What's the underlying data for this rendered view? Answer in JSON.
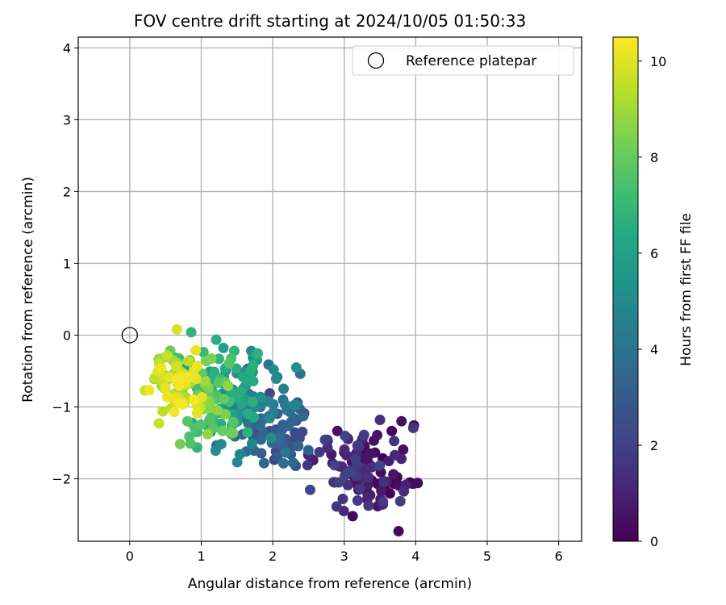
{
  "chart_data": {
    "type": "scatter",
    "title": "FOV centre drift starting at 2024/10/05 01:50:33",
    "xlabel": "Angular distance from reference (arcmin)",
    "ylabel": "Rotation from reference (arcmin)",
    "xlim": [
      -0.72,
      6.32
    ],
    "ylim": [
      -2.87,
      4.15
    ],
    "xticks": [
      0,
      1,
      2,
      3,
      4,
      5,
      6
    ],
    "yticks": [
      -2,
      -1,
      0,
      1,
      2,
      3,
      4
    ],
    "grid": true,
    "legend": {
      "placement": "top-right",
      "entries": [
        "Reference platepar"
      ]
    },
    "reference_point": {
      "name": "Reference platepar",
      "x": 0,
      "y": 0
    },
    "colorbar": {
      "label": "Hours from first FF file",
      "range": [
        0,
        10.5
      ],
      "ticks": [
        0,
        2,
        4,
        6,
        8,
        10
      ],
      "colormap": "viridis"
    },
    "hours_range": [
      0,
      10.4
    ],
    "clusters": [
      {
        "hours": [
          0.0,
          0.8
        ],
        "x_range": [
          3.0,
          3.9
        ],
        "y_range": [
          -2.4,
          -1.3
        ],
        "count": 48
      },
      {
        "hours": [
          0.8,
          2.2
        ],
        "x_range": [
          2.5,
          3.7
        ],
        "y_range": [
          -2.3,
          -1.4
        ],
        "count": 60
      },
      {
        "hours": [
          2.2,
          3.6
        ],
        "x_range": [
          1.6,
          2.4
        ],
        "y_range": [
          -1.8,
          -0.9
        ],
        "count": 55
      },
      {
        "hours": [
          3.6,
          5.2
        ],
        "x_range": [
          1.2,
          2.2
        ],
        "y_range": [
          -1.6,
          -0.4
        ],
        "count": 60
      },
      {
        "hours": [
          5.2,
          7.0
        ],
        "x_range": [
          0.9,
          1.7
        ],
        "y_range": [
          -1.4,
          -0.2
        ],
        "count": 70
      },
      {
        "hours": [
          7.0,
          8.8
        ],
        "x_range": [
          0.7,
          1.4
        ],
        "y_range": [
          -1.4,
          -0.3
        ],
        "count": 60
      },
      {
        "hours": [
          8.8,
          10.4
        ],
        "x_range": [
          0.35,
          0.95
        ],
        "y_range": [
          -1.05,
          -0.25
        ],
        "count": 65
      }
    ],
    "outliers": [
      {
        "x": 0.66,
        "y": 0.08,
        "hours": 9.9
      },
      {
        "x": 0.86,
        "y": 0.04,
        "hours": 6.8
      },
      {
        "x": 1.7,
        "y": -0.22,
        "hours": 5.0
      },
      {
        "x": 0.85,
        "y": -1.51,
        "hours": 7.5
      },
      {
        "x": 3.76,
        "y": -2.73,
        "hours": 0.3
      },
      {
        "x": 3.96,
        "y": -2.07,
        "hours": 0.3
      },
      {
        "x": 2.98,
        "y": -2.28,
        "hours": 1.6
      },
      {
        "x": 3.5,
        "y": -1.18,
        "hours": 1.4
      },
      {
        "x": 2.3,
        "y": -1.16,
        "hours": 3.3
      }
    ]
  }
}
